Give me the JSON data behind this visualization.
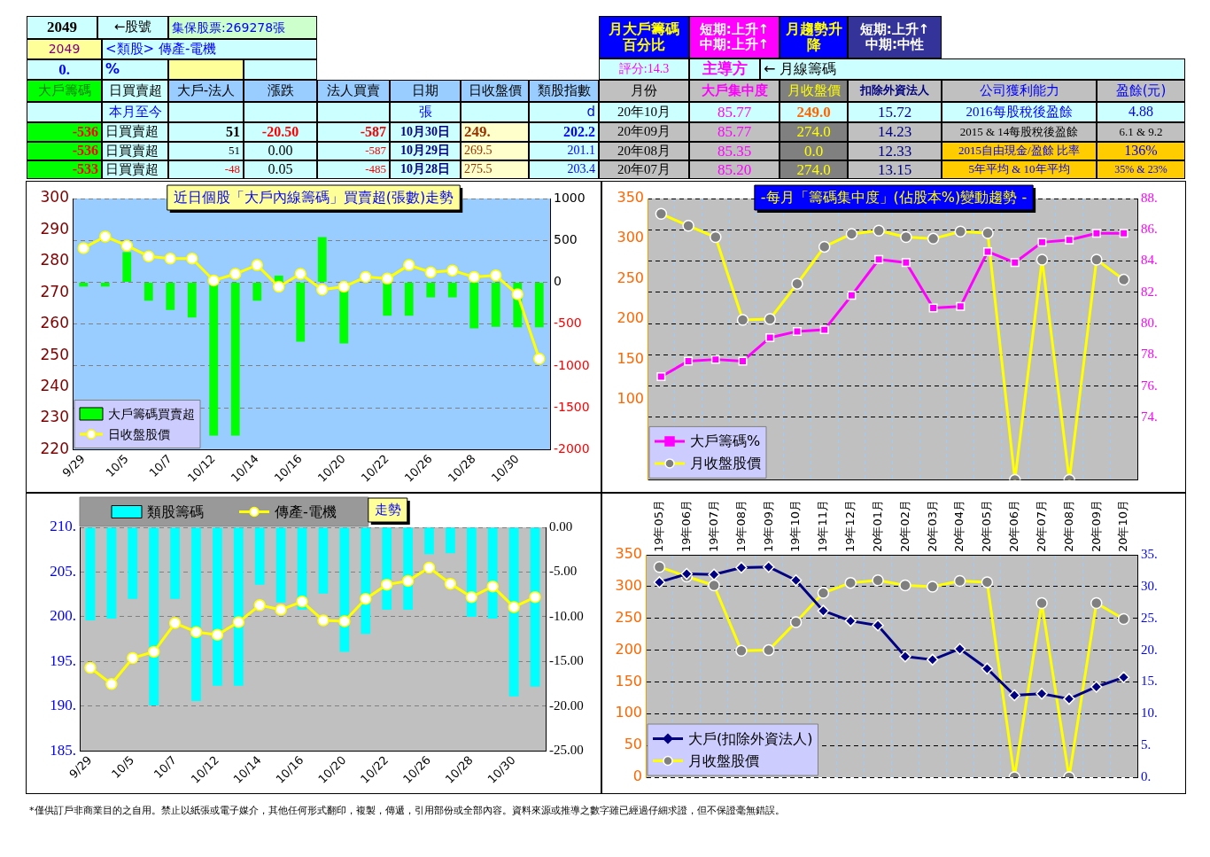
{
  "chart_data": [
    {
      "type": "other",
      "annotations": [
        "2049",
        "←股號",
        "集保股票:269278張",
        "2049",
        "<類股> 傳產-電機",
        "0.",
        "%",
        "大戶籌碼",
        "日買賣超",
        "大戶-法人",
        "漲跌",
        "法人買賣",
        "日期",
        "日收盤價",
        "類股指數",
        "本月至今",
        "張",
        "d",
        "-536",
        "日買賣超",
        "51",
        "-20.50",
        "-587",
        "10月30日",
        "249.",
        "202.2",
        "-536",
        "日買賣超",
        "51",
        "0.00",
        "-587",
        "10月29日",
        "269.5",
        "201.1",
        "-533",
        "日買賣超",
        "-48",
        "0.05",
        "-485",
        "10月28日",
        "275.5",
        "203.4",
        "月大戶籌碼百分比",
        "短期:上升↑\n中期:上升↑",
        "月趨勢升降",
        "短期:上升↑\n中期:中性",
        "評分:14.3",
        "主導方",
        "← 月線籌碼",
        "月份",
        "大戶集中度",
        "月收盤價",
        "扣除外資法人",
        "公司獲利能力",
        "盈餘(元)",
        "20年10月",
        "85.77",
        "249.0",
        "15.72",
        "2016每股稅後盈餘",
        "4.88",
        "20年09月",
        "85.77",
        "274.0",
        "14.23",
        "2015 & 14每股稅後盈餘",
        "6.1 & 9.2",
        "20年08月",
        "85.35",
        "0.0",
        "12.33",
        "2015自由現金/盈餘 比率",
        "136%",
        "20年07月",
        "85.20",
        "274.0",
        "13.15",
        "5年平均 & 10年平均",
        "35% & 23%",
        "*僅供訂戶非商業目的之自用。禁止以紙張或電子媒介，其他任何形式翻印，複製，傳遞，引用部份或全部內容。資料來源或推導之數字雖已經過仔細求證，但不保證毫無錯誤。"
      ]
    },
    {
      "type": "bar",
      "title": "近日個股「大戶內線籌碼」買賣超(張數)走勢",
      "categories": [
        "9/29",
        null,
        "10/5",
        null,
        "10/7",
        null,
        "10/12",
        null,
        "10/14",
        null,
        "10/16",
        null,
        "10/20",
        null,
        "10/22",
        null,
        "10/26",
        null,
        "10/28",
        null,
        "10/30",
        null
      ],
      "series": [
        {
          "name": "大戶籌碼買賣超",
          "type": "bar",
          "color": "#00ff00",
          "values": [
            -50,
            -50,
            360,
            -220,
            -330,
            -420,
            -1830,
            -1830,
            -220,
            80,
            -710,
            540,
            -730,
            0,
            -400,
            -400,
            -180,
            -180,
            -550,
            -533,
            -536,
            -536
          ]
        },
        {
          "name": "日收盤股價",
          "type": "line",
          "color": "#ffff00",
          "marker": "circle",
          "axis": "y2",
          "values": [
            284.2,
            287.9,
            285.0,
            281.6,
            280.9,
            280.9,
            273.9,
            276.0,
            278.8,
            271.9,
            276.0,
            271.0,
            271.9,
            275.0,
            274.5,
            278.8,
            276.5,
            277.1,
            275.0,
            275.5,
            269.5,
            249
          ]
        }
      ],
      "ylim": [
        -2000,
        1000
      ],
      "yticks": [
        1000,
        500,
        0,
        -500,
        -1000,
        -1500,
        -2000
      ],
      "y2lim": [
        220,
        300
      ],
      "y2ticks": [
        220,
        230,
        240,
        250,
        260,
        270,
        280,
        290,
        300
      ],
      "grid": "y",
      "legend": "bottom left"
    },
    {
      "type": "line",
      "title": "-每月「籌碼集中度」(佔股本%)變動趨勢 -",
      "categories": [
        null,
        null,
        null,
        null,
        null,
        null,
        null,
        null,
        null,
        null,
        null,
        null,
        null,
        null,
        null,
        null,
        null,
        null
      ],
      "series": [
        {
          "name": "大戶籌碼%",
          "color": "#ff00ff",
          "marker": "square",
          "values": [
            76.6,
            77.6,
            77.7,
            77.6,
            79.1,
            79.5,
            79.6,
            81.8,
            84.1,
            83.9,
            81.0,
            81.1,
            84.6,
            83.9,
            85.2,
            85.35,
            85.77,
            85.77
          ]
        },
        {
          "name": "月收盤股價",
          "color": "#ffff00",
          "marker": "circle",
          "axis": "y2",
          "values": [
            331,
            316,
            302,
            199,
            200,
            244,
            290,
            306,
            310,
            302,
            300,
            309,
            307,
            0,
            274,
            0,
            274,
            249
          ]
        }
      ],
      "ylim": [
        70,
        88
      ],
      "yticks": [
        {
          "value": 74,
          "label": "74."
        },
        {
          "value": 76,
          "label": "76."
        },
        {
          "value": 78,
          "label": "78."
        },
        {
          "value": 80,
          "label": "80."
        },
        {
          "value": 82,
          "label": "82."
        },
        {
          "value": 84,
          "label": "84."
        },
        {
          "value": 86,
          "label": "86."
        },
        {
          "value": 88,
          "label": "88."
        }
      ],
      "y2lim": [
        0,
        350
      ],
      "y2ticks": [
        100,
        150,
        200,
        250,
        300,
        350
      ],
      "grid": true,
      "legend": "bottom left"
    },
    {
      "type": "bar",
      "title": "走勢",
      "categories": [
        "9/29",
        null,
        "10/5",
        null,
        "10/7",
        null,
        "10/12",
        null,
        "10/14",
        null,
        "10/16",
        null,
        "10/20",
        null,
        "10/22",
        null,
        "10/26",
        null,
        "10/28",
        null,
        "10/30",
        null
      ],
      "series": [
        {
          "name": "類股籌碼",
          "type": "bar",
          "color": "#00ffff",
          "values": [
            -10.4,
            -10.2,
            -8.0,
            -19.9,
            -8.0,
            -19.4,
            -17.7,
            -17.7,
            -6.4,
            -8.4,
            -9.2,
            -7.4,
            -13.9,
            -11.9,
            -9.2,
            -9.2,
            -3.0,
            -2.9,
            -10.0,
            -10.2,
            -18.9,
            -17.8
          ]
        },
        {
          "name": "傳產-電機",
          "type": "line",
          "color": "#ffff00",
          "marker": "circle",
          "axis": "y2",
          "values": [
            194.3,
            192.5,
            195.4,
            196.1,
            199.3,
            198.3,
            198.0,
            199.4,
            201.3,
            200.8,
            201.7,
            199.6,
            199.5,
            202.0,
            203.6,
            204.0,
            205.5,
            203.7,
            202.2,
            203.4,
            201.1,
            202.2
          ]
        }
      ],
      "ylim": [
        -25,
        0
      ],
      "yticks": [
        {
          "value": 0,
          "label": "0.00"
        },
        {
          "value": -5,
          "label": "-5.00"
        },
        {
          "value": -10,
          "label": "-10.00"
        },
        {
          "value": -15,
          "label": "-15.00"
        },
        {
          "value": -20,
          "label": "-20.00"
        },
        {
          "value": -25,
          "label": "-25.00"
        }
      ],
      "y2lim": [
        185,
        210
      ],
      "y2ticks": [
        {
          "value": 185,
          "label": "185."
        },
        {
          "value": 190,
          "label": "190."
        },
        {
          "value": 195,
          "label": "195."
        },
        {
          "value": 200,
          "label": "200."
        },
        {
          "value": 205,
          "label": "205."
        },
        {
          "value": 210,
          "label": "210."
        }
      ],
      "grid": "y",
      "legend": "top left"
    },
    {
      "type": "line",
      "categories": [
        "19年05月",
        "19年06月",
        "19年07月",
        "19年08月",
        "19年09月",
        "19年10月",
        "19年11月",
        "19年12月",
        "20年01月",
        "20年02月",
        "20年03月",
        "20年04月",
        "20年05月",
        "20年06月",
        "20年07月",
        "20年08月",
        "20年09月",
        "20年10月"
      ],
      "series": [
        {
          "name": "大戶(扣除外資法人)",
          "color": "#000080",
          "marker": "diamond",
          "axis": "y2",
          "values": [
            30.7,
            32.0,
            31.9,
            33.0,
            33.1,
            31.0,
            26.2,
            24.6,
            23.9,
            19.0,
            18.5,
            20.2,
            17.1,
            12.9,
            13.15,
            12.33,
            14.23,
            15.72
          ]
        },
        {
          "name": "月收盤股價",
          "color": "#ffff00",
          "marker": "circle",
          "values": [
            331,
            316,
            302,
            199,
            200,
            244,
            290,
            306,
            310,
            302,
            300,
            309,
            307,
            0,
            274,
            0,
            274,
            249
          ]
        }
      ],
      "ylim": [
        0,
        350
      ],
      "yticks": [
        0,
        50,
        100,
        150,
        200,
        250,
        300,
        350
      ],
      "y2lim": [
        0,
        35
      ],
      "y2ticks": [
        {
          "value": 0,
          "label": "0."
        },
        {
          "value": 5,
          "label": "5."
        },
        {
          "value": 10,
          "label": "10."
        },
        {
          "value": 15,
          "label": "15."
        },
        {
          "value": 20,
          "label": "20."
        },
        {
          "value": 25,
          "label": "25."
        },
        {
          "value": 30,
          "label": "30."
        },
        {
          "value": 35,
          "label": "35."
        }
      ],
      "grid": true,
      "legend": "bottom left"
    }
  ]
}
